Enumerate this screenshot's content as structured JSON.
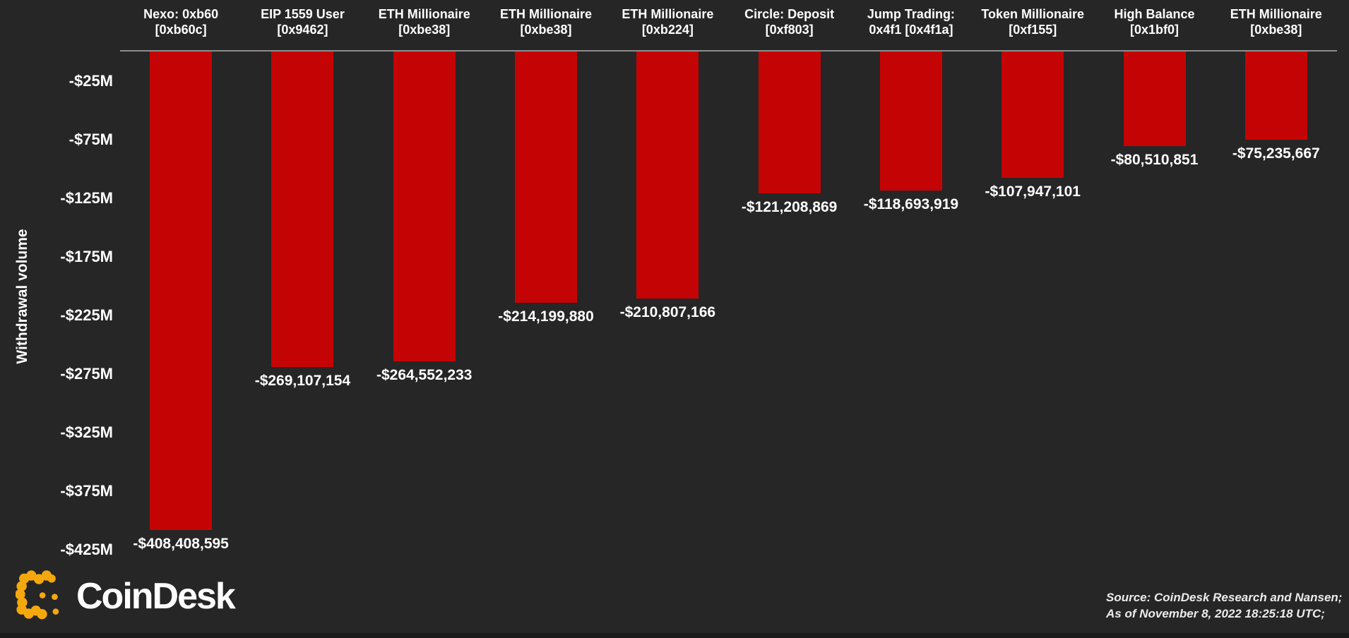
{
  "chart_data": {
    "type": "bar",
    "title": "",
    "ylabel": "Withdrawal volume",
    "unit": "USD",
    "grid": false,
    "legend": null,
    "ylim": [
      0,
      -425000000
    ],
    "yticks": [
      {
        "value": -25000000,
        "label": "-$25M"
      },
      {
        "value": -75000000,
        "label": "-$75M"
      },
      {
        "value": -125000000,
        "label": "-$125M"
      },
      {
        "value": -175000000,
        "label": "-$175M"
      },
      {
        "value": -225000000,
        "label": "-$225M"
      },
      {
        "value": -275000000,
        "label": "-$275M"
      },
      {
        "value": -325000000,
        "label": "-$325M"
      },
      {
        "value": -375000000,
        "label": "-$375M"
      },
      {
        "value": -425000000,
        "label": "-$425M"
      }
    ],
    "bars": [
      {
        "name_line1": "Nexo: 0xb60",
        "name_line2": "[0xb60c]",
        "value": -408408595,
        "label": "-$408,408,595"
      },
      {
        "name_line1": "EIP 1559 User",
        "name_line2": "[0x9462]",
        "value": -269107154,
        "label": "-$269,107,154"
      },
      {
        "name_line1": "ETH Millionaire",
        "name_line2": "[0xbe38]",
        "value": -264552233,
        "label": "-$264,552,233"
      },
      {
        "name_line1": "ETH Millionaire",
        "name_line2": "[0xbe38]",
        "value": -214199880,
        "label": "-$214,199,880"
      },
      {
        "name_line1": "ETH Millionaire",
        "name_line2": "[0xb224]",
        "value": -210807166,
        "label": "-$210,807,166"
      },
      {
        "name_line1": "Circle: Deposit",
        "name_line2": "[0xf803]",
        "value": -121208869,
        "label": "-$121,208,869"
      },
      {
        "name_line1": "Jump Trading:",
        "name_line2": "0x4f1 [0x4f1a]",
        "value": -118693919,
        "label": "-$118,693,919"
      },
      {
        "name_line1": "Token Millionaire",
        "name_line2": "[0xf155]",
        "value": -107947101,
        "label": "-$107,947,101"
      },
      {
        "name_line1": "High Balance",
        "name_line2": "[0x1bf0]",
        "value": -80510851,
        "label": "-$80,510,851"
      },
      {
        "name_line1": "ETH Millionaire",
        "name_line2": "[0xbe38]",
        "value": -75235667,
        "label": "-$75,235,667"
      }
    ]
  },
  "footer": {
    "logo_text": "CoinDesk",
    "source_line1": "Source: CoinDesk Research and Nansen;",
    "source_line2": "As of November 8, 2022 18:25:18 UTC;"
  },
  "colors": {
    "background": "#262626",
    "bar_red": "#c40404",
    "axis_line": "#8d8d8d",
    "text": "#ffffff",
    "source_text": "#ececec",
    "logo_yellow": "#f5a80c"
  }
}
